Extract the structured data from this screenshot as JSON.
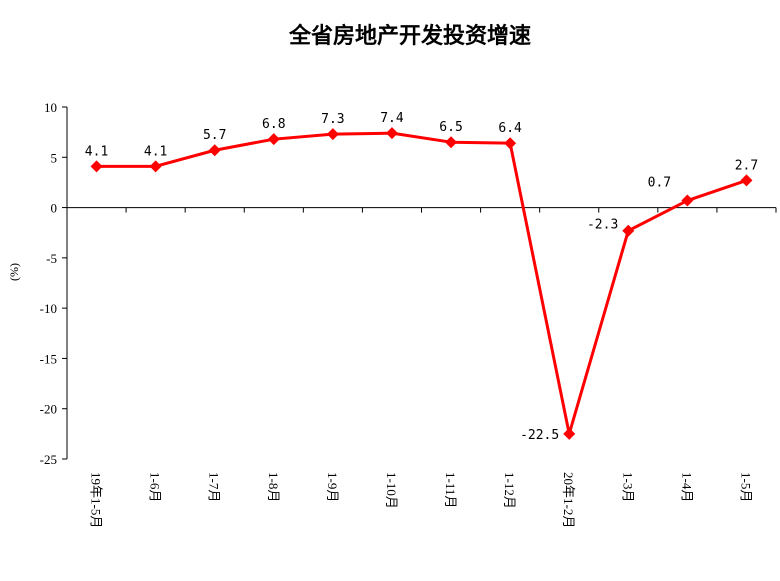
{
  "chart_data": {
    "type": "line",
    "title": "全省房地产开发投资增速",
    "ylabel": "(%)",
    "xlabel": "",
    "categories": [
      "19年1-5月",
      "1-6月",
      "1-7月",
      "1-8月",
      "1-9月",
      "1-10月",
      "1-11月",
      "1-12月",
      "20年1-2月",
      "1-3月",
      "1-4月",
      "1-5月"
    ],
    "values": [
      4.1,
      4.1,
      5.7,
      6.8,
      7.3,
      7.4,
      6.5,
      6.4,
      -22.5,
      -2.3,
      0.7,
      2.7
    ],
    "data_labels": [
      "4.1",
      "4.1",
      "5.7",
      "6.8",
      "7.3",
      "7.4",
      "6.5",
      "6.4",
      "-22.5",
      "-2.3",
      "0.7",
      "2.7"
    ],
    "ylim": [
      -25,
      10
    ],
    "yticks": [
      10,
      5,
      0,
      -5,
      -10,
      -15,
      -20,
      -25
    ],
    "ytick_labels": [
      "10",
      "5",
      "0",
      "-5",
      "-10",
      "-15",
      "-20",
      "-25"
    ],
    "grid": false,
    "legend": "none",
    "line_color": "#ff0000",
    "marker": "diamond"
  }
}
